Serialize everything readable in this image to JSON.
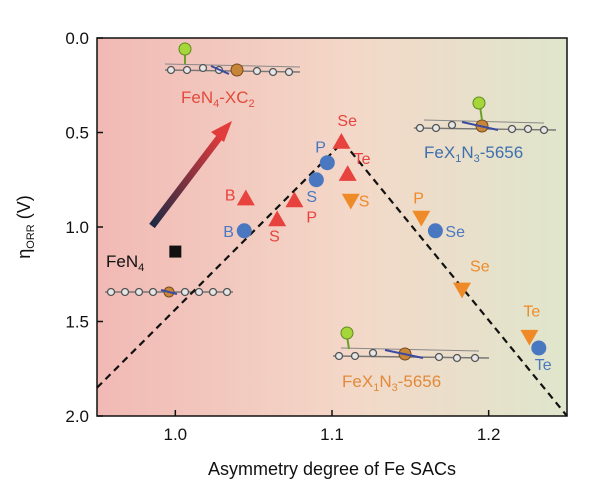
{
  "chart_data": {
    "type": "scatter",
    "xlabel": "Asymmetry degree of Fe SACs",
    "ylabel": "η",
    "ylabel_sub": "ORR",
    "ylabel_unit": " (V)",
    "xlim": [
      0.95,
      1.25
    ],
    "ylim": [
      0.0,
      2.0
    ],
    "y_inverted": true,
    "x_ticks": [
      "1.0",
      "1.1",
      "1.2"
    ],
    "y_ticks": [
      "0.0",
      "0.5",
      "1.0",
      "1.5",
      "2.0"
    ],
    "background_gradient": [
      "#f2b9b5",
      "#f3d8c8",
      "#dfe6cc"
    ],
    "colors": {
      "red_triangle": "#e8423e",
      "orange_triangle_down": "#ef8a28",
      "blue_circle": "#4a78c0",
      "black_square": "#111111",
      "annot_red": "#e24a3c",
      "annot_blue": "#3e6fae",
      "annot_orange": "#e28a3a"
    },
    "series": [
      {
        "marker": "triangle-up",
        "color": "#e8423e",
        "points": [
          {
            "label": "B",
            "x": 1.045,
            "y": 0.85
          },
          {
            "label": "S",
            "x": 1.065,
            "y": 0.96
          },
          {
            "label": "P",
            "x": 1.076,
            "y": 0.86
          },
          {
            "label": "Se",
            "x": 1.106,
            "y": 0.55
          },
          {
            "label": "Te",
            "x": 1.11,
            "y": 0.72
          }
        ]
      },
      {
        "marker": "circle",
        "color": "#4a78c0",
        "points": [
          {
            "label": "B",
            "x": 1.044,
            "y": 1.02
          },
          {
            "label": "S",
            "x": 1.09,
            "y": 0.75
          },
          {
            "label": "P",
            "x": 1.097,
            "y": 0.66
          },
          {
            "label": "Se",
            "x": 1.166,
            "y": 1.02
          },
          {
            "label": "Te",
            "x": 1.232,
            "y": 1.64
          }
        ]
      },
      {
        "marker": "triangle-down",
        "color": "#ef8a28",
        "points": [
          {
            "label": "S",
            "x": 1.112,
            "y": 0.86
          },
          {
            "label": "P",
            "x": 1.157,
            "y": 0.95
          },
          {
            "label": "Se",
            "x": 1.183,
            "y": 1.33
          },
          {
            "label": "Te",
            "x": 1.226,
            "y": 1.58
          }
        ]
      },
      {
        "marker": "square",
        "color": "#111111",
        "points": [
          {
            "label": "FeN4",
            "x": 1.0,
            "y": 1.13
          }
        ]
      }
    ],
    "volcano_line": [
      {
        "x": 0.95,
        "y": 1.85
      },
      {
        "x": 1.107,
        "y": 0.55
      },
      {
        "x": 1.25,
        "y": 2.0
      }
    ],
    "annotations": {
      "fen4": {
        "main": "FeN",
        "sub": "4"
      },
      "fen4_xc2": {
        "a": "FeN",
        "b": "4",
        "c": "-XC",
        "d": "2"
      },
      "fex1n3_blue": {
        "a": "FeX",
        "b": "1",
        "c": "N",
        "d": "3",
        "e": "-5656"
      },
      "fex1n3_orange": {
        "a": "FeX",
        "b": "1",
        "c": "N",
        "d": "3",
        "e": "-5656"
      }
    }
  }
}
